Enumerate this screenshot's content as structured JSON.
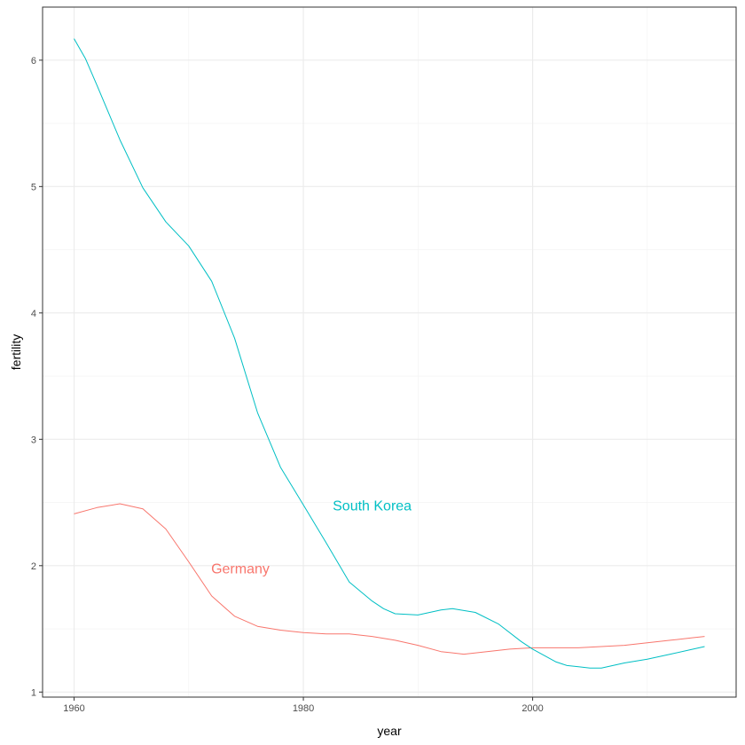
{
  "chart_data": {
    "type": "line",
    "xlabel": "year",
    "ylabel": "fertility",
    "xlim": [
      1957.25,
      2017.75
    ],
    "ylim": [
      0.96,
      6.42
    ],
    "x_ticks": [
      1960,
      1980,
      2000
    ],
    "y_ticks": [
      1,
      2,
      3,
      4,
      5,
      6
    ],
    "grid": true,
    "legend": "none",
    "series": [
      {
        "name": "Germany",
        "color": "#F8766D",
        "label_pos": [
          1974.5,
          1.98
        ],
        "x": [
          1960,
          1962,
          1964,
          1966,
          1968,
          1970,
          1972,
          1974,
          1976,
          1978,
          1980,
          1982,
          1984,
          1986,
          1988,
          1990,
          1992,
          1994,
          1996,
          1998,
          2000,
          2002,
          2004,
          2006,
          2008,
          2010,
          2012,
          2014,
          2015
        ],
        "y": [
          2.41,
          2.46,
          2.49,
          2.45,
          2.29,
          2.03,
          1.76,
          1.6,
          1.52,
          1.49,
          1.47,
          1.46,
          1.46,
          1.44,
          1.41,
          1.37,
          1.32,
          1.3,
          1.32,
          1.34,
          1.35,
          1.35,
          1.35,
          1.36,
          1.37,
          1.39,
          1.41,
          1.43,
          1.44
        ]
      },
      {
        "name": "South Korea",
        "color": "#00BFC4",
        "label_pos": [
          1986,
          2.48
        ],
        "x": [
          1960,
          1961,
          1962,
          1964,
          1966,
          1968,
          1970,
          1972,
          1974,
          1976,
          1978,
          1980,
          1982,
          1984,
          1986,
          1987,
          1988,
          1990,
          1992,
          1993,
          1995,
          1997,
          1999,
          2000,
          2002,
          2003,
          2004,
          2005,
          2006,
          2008,
          2010,
          2012,
          2014,
          2015
        ],
        "y": [
          6.17,
          6.01,
          5.8,
          5.37,
          4.99,
          4.72,
          4.53,
          4.25,
          3.8,
          3.21,
          2.78,
          2.48,
          2.18,
          1.87,
          1.72,
          1.66,
          1.62,
          1.61,
          1.65,
          1.66,
          1.63,
          1.54,
          1.4,
          1.34,
          1.24,
          1.21,
          1.2,
          1.19,
          1.19,
          1.23,
          1.26,
          1.3,
          1.34,
          1.36
        ]
      }
    ]
  }
}
